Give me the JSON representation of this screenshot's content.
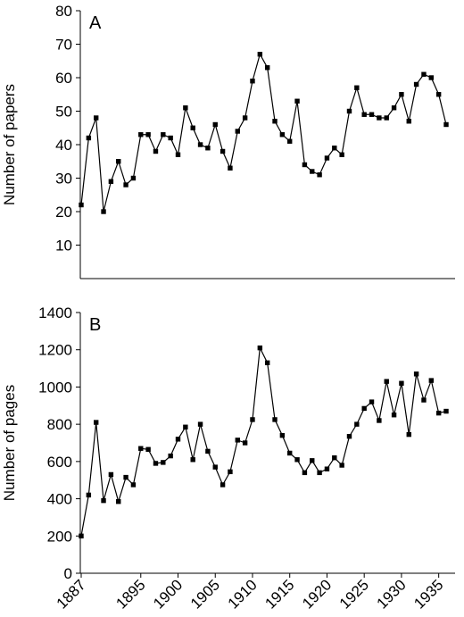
{
  "chart_data": [
    {
      "type": "line",
      "panel_label": "A",
      "y_label": "Number of papers",
      "x": [
        1887,
        1888,
        1889,
        1890,
        1891,
        1892,
        1893,
        1894,
        1895,
        1896,
        1897,
        1898,
        1899,
        1900,
        1901,
        1902,
        1903,
        1904,
        1905,
        1906,
        1907,
        1908,
        1909,
        1910,
        1911,
        1912,
        1913,
        1914,
        1915,
        1916,
        1917,
        1918,
        1919,
        1920,
        1921,
        1922,
        1923,
        1924,
        1925,
        1926,
        1927,
        1928,
        1929,
        1930,
        1931,
        1932,
        1933,
        1934,
        1935,
        1936
      ],
      "values": [
        22,
        42,
        48,
        20,
        29,
        35,
        28,
        30,
        43,
        43,
        38,
        43,
        42,
        37,
        51,
        45,
        40,
        39,
        46,
        38,
        33,
        44,
        48,
        59,
        67,
        63,
        47,
        43,
        41,
        53,
        34,
        32,
        31,
        36,
        39,
        37,
        50,
        57,
        49,
        49,
        48,
        48,
        51,
        55,
        47,
        58,
        61,
        60,
        55,
        46
      ],
      "color": "#000000",
      "xlim": [
        1887,
        1936
      ],
      "ylim": [
        0,
        80
      ],
      "yticks": [
        10,
        20,
        30,
        40,
        50,
        60,
        70,
        80
      ]
    },
    {
      "type": "line",
      "panel_label": "B",
      "y_label": "Number of pages",
      "x": [
        1887,
        1888,
        1889,
        1890,
        1891,
        1892,
        1893,
        1894,
        1895,
        1896,
        1897,
        1898,
        1899,
        1900,
        1901,
        1902,
        1903,
        1904,
        1905,
        1906,
        1907,
        1908,
        1909,
        1910,
        1911,
        1912,
        1913,
        1914,
        1915,
        1916,
        1917,
        1918,
        1919,
        1920,
        1921,
        1922,
        1923,
        1924,
        1925,
        1926,
        1927,
        1928,
        1929,
        1930,
        1931,
        1932,
        1933,
        1934,
        1935,
        1936
      ],
      "values": [
        200,
        420,
        810,
        390,
        530,
        385,
        515,
        475,
        670,
        665,
        590,
        595,
        630,
        720,
        785,
        610,
        800,
        655,
        570,
        475,
        545,
        715,
        700,
        825,
        1210,
        1130,
        825,
        740,
        645,
        610,
        540,
        605,
        540,
        560,
        620,
        580,
        735,
        800,
        885,
        920,
        820,
        1030,
        850,
        1020,
        745,
        1070,
        930,
        1035,
        860,
        870
      ],
      "color": "#000000",
      "xlim": [
        1887,
        1936
      ],
      "ylim": [
        0,
        1400
      ],
      "yticks": [
        0,
        200,
        400,
        600,
        800,
        1000,
        1200,
        1400
      ],
      "xticks": [
        1887,
        1895,
        1900,
        1905,
        1910,
        1915,
        1920,
        1925,
        1930,
        1935
      ]
    }
  ]
}
